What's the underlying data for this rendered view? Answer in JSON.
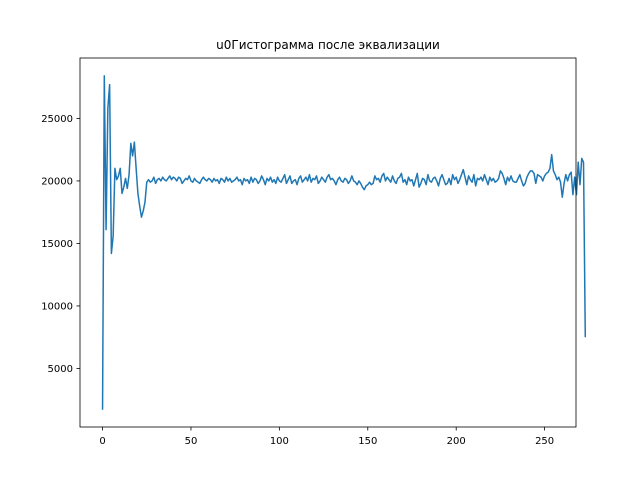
{
  "chart_data": {
    "type": "line",
    "title": "u0Гистограмма после эквализации",
    "xlabel": "",
    "ylabel": "",
    "xlim": [
      -12.75,
      267.75
    ],
    "ylim": [
      320,
      29830
    ],
    "x_ticks": [
      0,
      50,
      100,
      150,
      200,
      250
    ],
    "x_tick_labels": [
      "0",
      "50",
      "100",
      "150",
      "200",
      "250"
    ],
    "y_ticks": [
      5000,
      10000,
      15000,
      20000,
      25000
    ],
    "y_tick_labels": [
      "5000",
      "10000",
      "15000",
      "20000",
      "25000"
    ],
    "grid": false,
    "series_color": "#1f77b4",
    "series": [
      {
        "values": [
          1700,
          28400,
          16100,
          25800,
          27700,
          14200,
          15600,
          21000,
          20100,
          20400,
          21000,
          19000,
          19500,
          20200,
          19400,
          20500,
          23000,
          22000,
          23100,
          21000,
          19000,
          18000,
          17100,
          17600,
          18300,
          19900,
          20100,
          19900,
          20000,
          20300,
          19800,
          20100,
          20200,
          20000,
          20300,
          20100,
          20000,
          20200,
          20400,
          20100,
          20300,
          20200,
          20000,
          20300,
          20200,
          19800,
          20000,
          20200,
          20100,
          20400,
          20000,
          19900,
          20200,
          20000,
          19900,
          19800,
          20100,
          20300,
          20100,
          20000,
          20200,
          20100,
          19900,
          20200,
          20000,
          20100,
          19800,
          20200,
          20100,
          19900,
          20300,
          20000,
          20200,
          19900,
          20000,
          20100,
          20300,
          20000,
          20100,
          19700,
          20200,
          20000,
          20100,
          19800,
          20300,
          19900,
          20200,
          20100,
          19800,
          20000,
          20400,
          20100,
          19700,
          20200,
          20000,
          20300,
          19900,
          20100,
          19800,
          20300,
          20000,
          19900,
          20200,
          20500,
          19800,
          20100,
          20400,
          19800,
          20000,
          20100,
          19700,
          20200,
          20400,
          19900,
          20100,
          20300,
          20000,
          20500,
          19900,
          20200,
          20100,
          20400,
          19800,
          20000,
          20300,
          20100,
          19900,
          20300,
          20500,
          20100,
          20200,
          20000,
          19700,
          20100,
          20300,
          20000,
          19900,
          20200,
          20100,
          19800,
          20000,
          20400,
          20000,
          19900,
          19700,
          20000,
          19800,
          19500,
          19300,
          19600,
          19700,
          19900,
          19700,
          19800,
          20400,
          20100,
          20200,
          19900,
          20400,
          20600,
          20000,
          20300,
          20100,
          19900,
          20400,
          20000,
          19800,
          20200,
          20300,
          20600,
          19900,
          20100,
          19700,
          20300,
          20000,
          20100,
          19600,
          20100,
          20600,
          19500,
          19800,
          20200,
          20100,
          19700,
          20500,
          20000,
          19900,
          20200,
          20300,
          20000,
          19600,
          20200,
          20500,
          20100,
          19700,
          19800,
          20200,
          19700,
          20500,
          20100,
          20300,
          19800,
          20100,
          20500,
          20900,
          20300,
          19700,
          20400,
          20100,
          19900,
          20500,
          19600,
          20200,
          20100,
          20300,
          20000,
          20500,
          20100,
          19700,
          20300,
          20000,
          20200,
          19900,
          20000,
          20200,
          20800,
          20600,
          20200,
          19700,
          20300,
          20000,
          20400,
          20000,
          19900,
          19900,
          20200,
          20500,
          20000,
          19600,
          19800,
          20300,
          20600,
          20800,
          20800,
          20600,
          19800,
          20500,
          20400,
          20300,
          20000,
          20400,
          20600,
          20700,
          21000,
          22100,
          20800,
          20500,
          20100,
          20300,
          19900,
          18700,
          19800,
          20500,
          20000,
          20500,
          20700,
          18900,
          20300,
          18900,
          21500,
          19700,
          21800,
          21500,
          7500
        ]
      }
    ]
  }
}
